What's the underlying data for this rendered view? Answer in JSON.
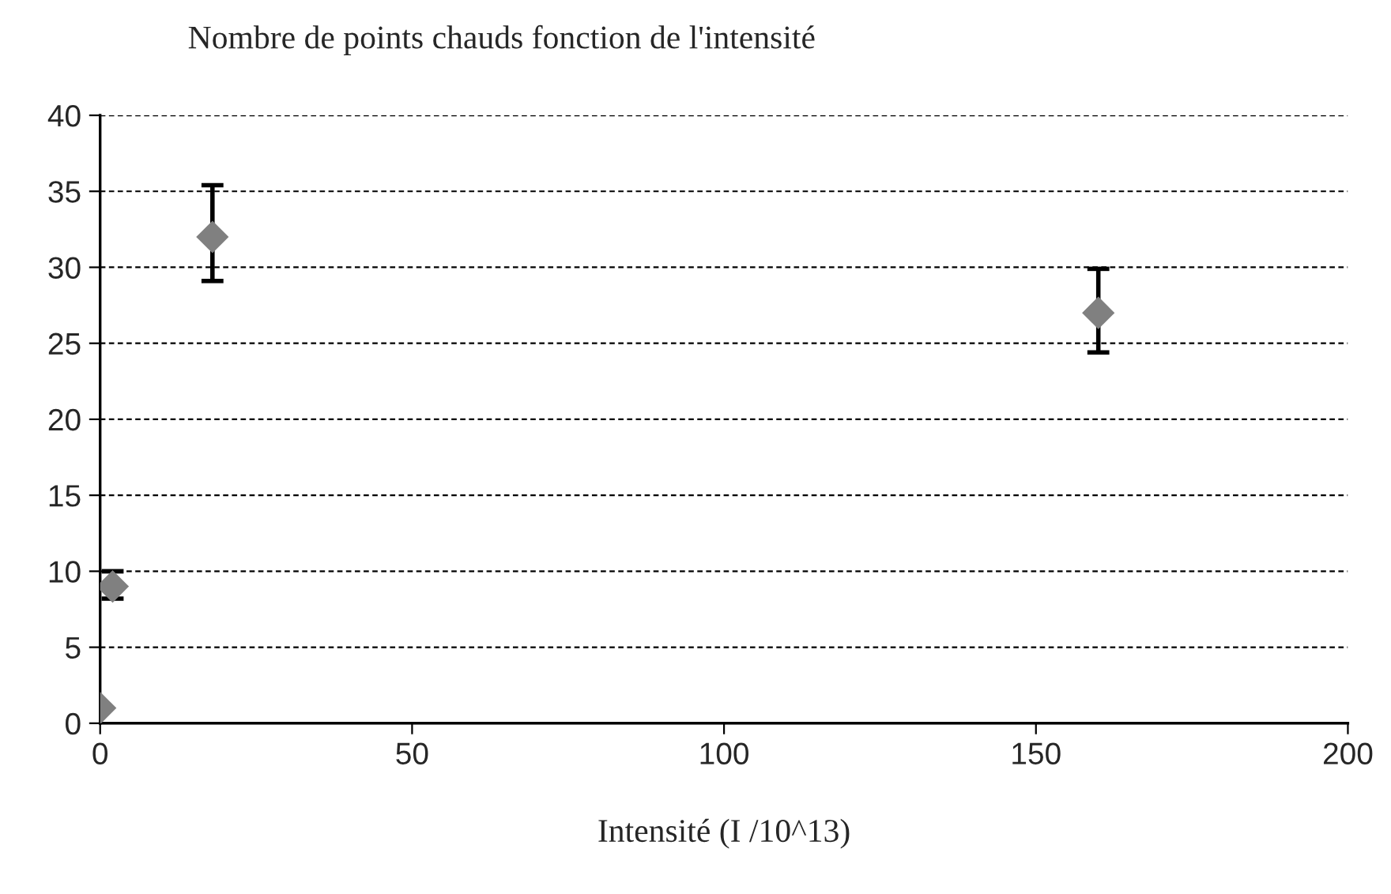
{
  "chart_data": {
    "type": "scatter",
    "title": "Nombre de points chauds fonction de l'intensité",
    "xlabel": "Intensité (I /10^13)",
    "x": [
      0,
      2,
      18,
      160
    ],
    "values": [
      1,
      9,
      32,
      27
    ],
    "errors": [
      null,
      [
        8.2,
        10
      ],
      [
        29.1,
        35.4
      ],
      [
        24.4,
        29.9
      ]
    ],
    "color": "#808080",
    "marker": "diamond",
    "xlim": [
      0,
      200
    ],
    "xticks": [
      0,
      50,
      100,
      150,
      200
    ],
    "ylim": [
      0,
      40
    ],
    "yticks": [
      0,
      5,
      10,
      15,
      20,
      25,
      30,
      35,
      40
    ],
    "grid": "y",
    "legend": false
  }
}
